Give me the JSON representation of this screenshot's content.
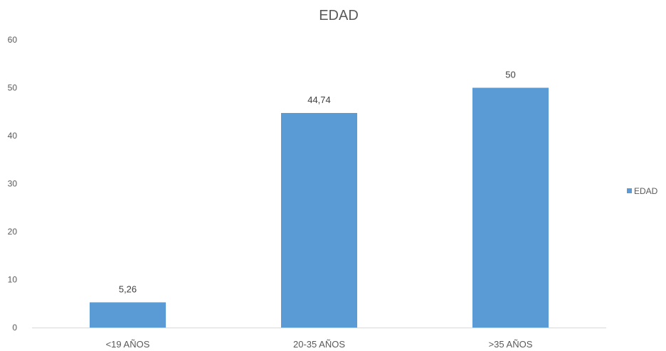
{
  "chart_data": {
    "type": "bar",
    "title": "EDAD",
    "xlabel": "",
    "ylabel": "",
    "categories": [
      "<19 AÑOS",
      "20-35 AÑOS",
      ">35 AÑOS"
    ],
    "series": [
      {
        "name": "EDAD",
        "values": [
          5.26,
          44.74,
          50
        ],
        "value_labels": [
          "5,26",
          "44,74",
          "50"
        ]
      }
    ],
    "ylim": [
      0,
      60
    ],
    "yticks": [
      0,
      10,
      20,
      30,
      40,
      50,
      60
    ],
    "grid": false,
    "legend": "right",
    "colors": {
      "bar": "#5b9bd5",
      "axis": "#d9d9d9",
      "text": "#595959"
    }
  }
}
